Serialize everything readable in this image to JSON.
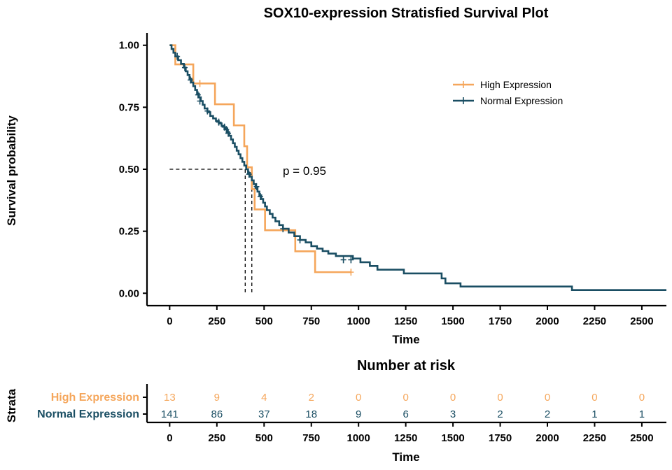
{
  "chart_data": [
    {
      "type": "line",
      "subtype": "kaplan-meier",
      "title": "SOX10-expression Stratisfied Survival Plot",
      "xlabel": "Time",
      "ylabel": "Survival probability",
      "xlim": [
        -120,
        2630
      ],
      "ylim": [
        -0.05,
        1.05
      ],
      "xticks": [
        "0",
        "250",
        "500",
        "750",
        "1000",
        "1250",
        "1500",
        "1750",
        "2000",
        "2250",
        "2500"
      ],
      "yticks": [
        "0.00",
        "0.25",
        "0.50",
        "0.75",
        "1.00"
      ],
      "legend_position": "top-right",
      "grid": false,
      "annotation": "p = 0.95",
      "median_lines": {
        "y": 0.5,
        "x": [
          400,
          435
        ]
      },
      "series": [
        {
          "name": "High Expression",
          "color": "#F5A65B",
          "steps": [
            [
              0,
              1.0
            ],
            [
              30,
              0.923
            ],
            [
              125,
              0.846
            ],
            [
              240,
              0.762
            ],
            [
              340,
              0.677
            ],
            [
              395,
              0.593
            ],
            [
              410,
              0.508
            ],
            [
              435,
              0.42
            ],
            [
              450,
              0.338
            ],
            [
              505,
              0.254
            ],
            [
              665,
              0.169
            ],
            [
              770,
              0.085
            ],
            [
              960,
              0.085
            ]
          ],
          "censor": [
            [
              160,
              0.846
            ],
            [
              960,
              0.085
            ]
          ]
        },
        {
          "name": "Normal Expression",
          "color": "#1A4E63",
          "steps": [
            [
              0,
              1.0
            ],
            [
              10,
              0.985
            ],
            [
              20,
              0.97
            ],
            [
              30,
              0.955
            ],
            [
              45,
              0.94
            ],
            [
              60,
              0.925
            ],
            [
              75,
              0.91
            ],
            [
              85,
              0.895
            ],
            [
              95,
              0.88
            ],
            [
              105,
              0.865
            ],
            [
              115,
              0.85
            ],
            [
              125,
              0.835
            ],
            [
              135,
              0.82
            ],
            [
              145,
              0.805
            ],
            [
              155,
              0.79
            ],
            [
              165,
              0.775
            ],
            [
              175,
              0.76
            ],
            [
              185,
              0.745
            ],
            [
              200,
              0.73
            ],
            [
              215,
              0.715
            ],
            [
              230,
              0.705
            ],
            [
              245,
              0.695
            ],
            [
              260,
              0.685
            ],
            [
              275,
              0.675
            ],
            [
              290,
              0.665
            ],
            [
              305,
              0.65
            ],
            [
              315,
              0.635
            ],
            [
              325,
              0.62
            ],
            [
              335,
              0.605
            ],
            [
              345,
              0.59
            ],
            [
              355,
              0.575
            ],
            [
              365,
              0.56
            ],
            [
              375,
              0.545
            ],
            [
              385,
              0.53
            ],
            [
              395,
              0.515
            ],
            [
              405,
              0.5
            ],
            [
              415,
              0.485
            ],
            [
              425,
              0.47
            ],
            [
              435,
              0.455
            ],
            [
              445,
              0.44
            ],
            [
              455,
              0.425
            ],
            [
              465,
              0.41
            ],
            [
              475,
              0.395
            ],
            [
              485,
              0.38
            ],
            [
              495,
              0.365
            ],
            [
              505,
              0.35
            ],
            [
              515,
              0.335
            ],
            [
              530,
              0.32
            ],
            [
              545,
              0.305
            ],
            [
              560,
              0.29
            ],
            [
              580,
              0.275
            ],
            [
              600,
              0.26
            ],
            [
              630,
              0.245
            ],
            [
              660,
              0.23
            ],
            [
              690,
              0.215
            ],
            [
              720,
              0.205
            ],
            [
              750,
              0.19
            ],
            [
              780,
              0.18
            ],
            [
              810,
              0.17
            ],
            [
              840,
              0.16
            ],
            [
              880,
              0.15
            ],
            [
              970,
              0.14
            ],
            [
              1010,
              0.125
            ],
            [
              1060,
              0.11
            ],
            [
              1100,
              0.095
            ],
            [
              1240,
              0.08
            ],
            [
              1440,
              0.06
            ],
            [
              1460,
              0.04
            ],
            [
              1540,
              0.027
            ],
            [
              2130,
              0.013
            ],
            [
              2630,
              0.013
            ]
          ],
          "censor": [
            [
              40,
              0.955
            ],
            [
              80,
              0.91
            ],
            [
              110,
              0.86
            ],
            [
              150,
              0.8
            ],
            [
              160,
              0.775
            ],
            [
              200,
              0.735
            ],
            [
              260,
              0.69
            ],
            [
              290,
              0.67
            ],
            [
              300,
              0.66
            ],
            [
              310,
              0.645
            ],
            [
              420,
              0.48
            ],
            [
              460,
              0.43
            ],
            [
              480,
              0.39
            ],
            [
              600,
              0.26
            ],
            [
              690,
              0.215
            ],
            [
              920,
              0.135
            ],
            [
              960,
              0.135
            ]
          ]
        }
      ]
    },
    {
      "type": "table",
      "title": "Number at risk",
      "xlabel": "Time",
      "ylabel": "Strata",
      "xlim": [
        -120,
        2630
      ],
      "xticks": [
        "0",
        "250",
        "500",
        "750",
        "1000",
        "1250",
        "1500",
        "1750",
        "2000",
        "2250",
        "2500"
      ],
      "time_points": [
        0,
        250,
        500,
        750,
        1000,
        1250,
        1500,
        1750,
        2000,
        2250,
        2500
      ],
      "rows": [
        {
          "name": "High Expression",
          "color": "#F5A65B",
          "values": [
            "13",
            "9",
            "4",
            "2",
            "0",
            "0",
            "0",
            "0",
            "0",
            "0",
            "0"
          ]
        },
        {
          "name": "Normal Expression",
          "color": "#1A4E63",
          "values": [
            "141",
            "86",
            "37",
            "18",
            "9",
            "6",
            "3",
            "2",
            "2",
            "1",
            "1"
          ]
        }
      ]
    }
  ]
}
